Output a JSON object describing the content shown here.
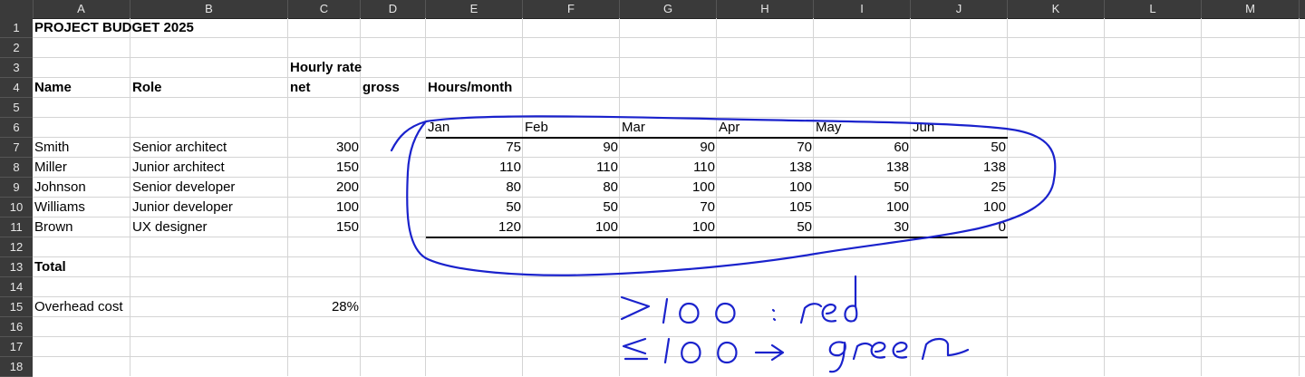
{
  "columns": [
    "A",
    "B",
    "C",
    "D",
    "E",
    "F",
    "G",
    "H",
    "I",
    "J",
    "K",
    "L",
    "M"
  ],
  "rows": [
    "1",
    "2",
    "3",
    "4",
    "5",
    "6",
    "7",
    "8",
    "9",
    "10",
    "11",
    "12",
    "13",
    "14",
    "15",
    "16",
    "17",
    "18"
  ],
  "title": "PROJECT BUDGET 2025",
  "hourly_rate_label": "Hourly rate",
  "headers": {
    "name": "Name",
    "role": "Role",
    "net": "net",
    "gross": "gross",
    "hours_month": "Hours/month"
  },
  "months": [
    "Jan",
    "Feb",
    "Mar",
    "Apr",
    "May",
    "Jun"
  ],
  "people": [
    {
      "name": "Smith",
      "role": "Senior architect",
      "rate": "300",
      "hours": [
        "75",
        "90",
        "90",
        "70",
        "60",
        "50"
      ]
    },
    {
      "name": "Miller",
      "role": "Junior architect",
      "rate": "150",
      "hours": [
        "110",
        "110",
        "110",
        "138",
        "138",
        "138"
      ]
    },
    {
      "name": "Johnson",
      "role": "Senior developer",
      "rate": "200",
      "hours": [
        "80",
        "80",
        "100",
        "100",
        "50",
        "25"
      ]
    },
    {
      "name": "Williams",
      "role": "Junior developer",
      "rate": "100",
      "hours": [
        "50",
        "50",
        "70",
        "105",
        "100",
        "100"
      ]
    },
    {
      "name": "Brown",
      "role": "UX designer",
      "rate": "150",
      "hours": [
        "120",
        "100",
        "100",
        "50",
        "30",
        "0"
      ]
    }
  ],
  "total_label": "Total",
  "overhead_label": "Overhead cost",
  "overhead_value": "28%",
  "annotation": {
    "line1": ">100 : red",
    "line2": "≤100 → green",
    "ink_color": "#1a22cc"
  },
  "colors": {
    "header_bg": "#3a3a3a",
    "header_text": "#e6e6e6",
    "grid": "#d4d4d4"
  }
}
